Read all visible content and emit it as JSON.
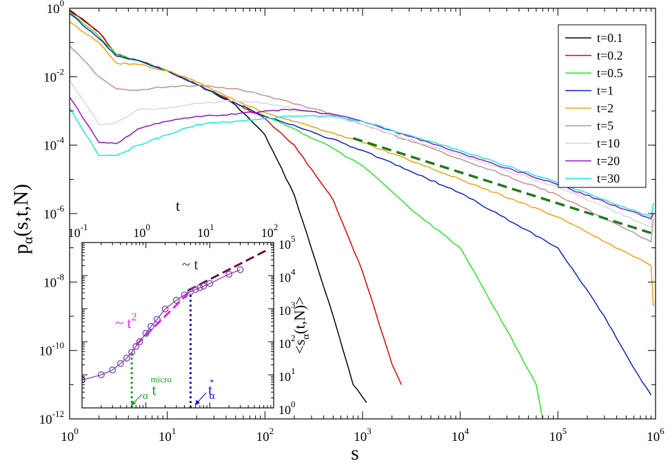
{
  "chart_data": {
    "type": "line",
    "main": {
      "xscale": "log10",
      "yscale": "log10",
      "xlim": [
        1,
        1000000
      ],
      "ylim": [
        1e-12,
        1
      ],
      "xlabel": "s",
      "ylabel_main": "p",
      "ylabel_sub": "α",
      "ylabel_args": "(s,t,N)",
      "x_tick_exponents": [
        "0",
        "1",
        "2",
        "3",
        "4",
        "5",
        "6"
      ],
      "y_tick_exponents": [
        "0",
        "-2",
        "-4",
        "-6",
        "-8",
        "-10",
        "-12"
      ],
      "tick_base": "10",
      "legend": {
        "placement": "top-right",
        "entries": [
          "t=0.1",
          "t=0.2",
          "t=0.5",
          "t=1",
          "t=2",
          "t=5",
          "t=10",
          "t=20",
          "t=30"
        ]
      },
      "series": [
        {
          "name": "t=0.1",
          "color": "#000000",
          "x": [
            1,
            2,
            3,
            5,
            10,
            20,
            50,
            100,
            200,
            500,
            800,
            1100
          ],
          "y": [
            0.9,
            0.2,
            0.045,
            0.03,
            0.015,
            0.006,
            0.0015,
            0.0002,
            3.5e-06,
            1e-09,
            1e-11,
            3e-12
          ]
        },
        {
          "name": "t=0.2",
          "color": "#e00000",
          "x": [
            1,
            2,
            3,
            5,
            10,
            20,
            50,
            100,
            200,
            500,
            1000,
            2000,
            2500
          ],
          "y": [
            0.85,
            0.2,
            0.045,
            0.03,
            0.015,
            0.006,
            0.0017,
            0.0006,
            0.0001,
            2.5e-06,
            2e-08,
            4e-11,
            1e-11
          ]
        },
        {
          "name": "t=0.5",
          "color": "#22e822",
          "x": [
            1,
            2,
            3,
            5,
            10,
            20,
            50,
            100,
            200,
            500,
            1000,
            3000,
            10000,
            30000,
            60000,
            75000
          ],
          "y": [
            0.8,
            0.15,
            0.045,
            0.03,
            0.015,
            0.006,
            0.0017,
            0.0007,
            0.0003,
            8e-05,
            2.5e-05,
            1.5e-06,
            1e-07,
            4e-10,
            1e-11,
            3e-13
          ]
        },
        {
          "name": "t=1",
          "color": "#0a1fd6",
          "x": [
            1,
            2,
            3,
            5,
            10,
            20,
            50,
            100,
            300,
            1000,
            3000,
            10000,
            100000,
            300000,
            600000,
            900000
          ],
          "y": [
            0.7,
            0.13,
            0.04,
            0.03,
            0.015,
            0.006,
            0.0017,
            0.0007,
            0.00025,
            7e-05,
            1.8e-05,
            4e-06,
            1e-07,
            1e-09,
            3e-11,
            5e-12
          ]
        },
        {
          "name": "t=2",
          "color": "#f0a010",
          "x": [
            1,
            2,
            3,
            5,
            10,
            20,
            50,
            100,
            300,
            1000,
            10000,
            100000,
            900000,
            950000
          ],
          "y": [
            0.4,
            0.1,
            0.025,
            0.023,
            0.015,
            0.007,
            0.002,
            0.0009,
            0.00035,
            0.00012,
            1e-05,
            8e-07,
            3e-08,
            2e-09
          ]
        },
        {
          "name": "t=5",
          "color": "#c09090",
          "x": [
            1,
            2,
            3,
            5,
            8,
            10,
            20,
            50,
            100,
            300,
            1000,
            10000,
            100000,
            900000,
            950000
          ],
          "y": [
            0.08,
            0.01,
            0.0045,
            0.004,
            0.005,
            0.005,
            0.0055,
            0.0045,
            0.0028,
            0.0012,
            0.0004,
            4e-05,
            3.5e-06,
            1.5e-07,
            7e-07
          ]
        },
        {
          "name": "t=10",
          "color": "#d8d8d8",
          "x": [
            1,
            2,
            3,
            5,
            10,
            20,
            50,
            100,
            300,
            1000,
            10000,
            100000,
            900000,
            950000
          ],
          "y": [
            0.008,
            0.0004,
            0.00045,
            0.0011,
            0.0012,
            0.0017,
            0.002,
            0.0017,
            0.001,
            0.0004,
            5e-05,
            6e-06,
            4e-07,
            2e-06
          ]
        },
        {
          "name": "t=20",
          "color": "#9012c8",
          "x": [
            1,
            2,
            3,
            5,
            10,
            20,
            50,
            100,
            200,
            500,
            1000,
            10000,
            100000,
            900000,
            950000
          ],
          "y": [
            0.0025,
            0.00012,
            0.00011,
            0.0003,
            0.0005,
            0.0007,
            0.0008,
            0.001,
            0.0011,
            0.0008,
            0.0005,
            6e-05,
            7e-06,
            7e-07,
            1e-06
          ]
        },
        {
          "name": "t=30",
          "color": "#18e6e6",
          "x": [
            1,
            2,
            3,
            5,
            10,
            20,
            50,
            100,
            200,
            500,
            1000,
            10000,
            100000,
            900000,
            950000
          ],
          "y": [
            0.0012,
            5e-05,
            5e-05,
            0.0001,
            0.0002,
            0.0004,
            0.0005,
            0.0006,
            0.0007,
            0.0007,
            0.0005,
            7e-05,
            8e-06,
            8e-07,
            2e-06
          ]
        }
      ],
      "guide": {
        "description": "power-law guide",
        "color": "#1f7a1f",
        "x": [
          800,
          900000
        ],
        "y": [
          0.00016,
          2.7e-07
        ]
      }
    },
    "inset": {
      "xscale": "log10",
      "yscale": "log10",
      "xlim": [
        0.1,
        100
      ],
      "ylim": [
        1,
        100000
      ],
      "xlabel": "t",
      "ylabel_main": "<s",
      "ylabel_sub": "α",
      "ylabel_args": "(t,N)>",
      "x_tick_exponents": [
        "-1",
        "0",
        "1",
        "2"
      ],
      "y_tick_exponents": [
        "0",
        "1",
        "2",
        "3",
        "4",
        "5"
      ],
      "tick_base": "10",
      "series": {
        "name": "<s_alpha(t,N)>",
        "color": "#8040b0",
        "t": [
          0.1,
          0.2,
          0.3,
          0.4,
          0.5,
          0.6,
          0.7,
          0.8,
          1.0,
          1.2,
          1.5,
          2,
          3,
          4,
          5,
          6,
          7,
          8,
          10,
          20,
          30
        ],
        "s": [
          7,
          10,
          14,
          22,
          32,
          48,
          72,
          100,
          180,
          290,
          480,
          980,
          1800,
          2600,
          3300,
          3800,
          4300,
          4800,
          5800,
          11000,
          15000
        ]
      },
      "fit_t2": {
        "label_prefix": "~ t",
        "exponent": "2",
        "color": "#ee22ee",
        "t": [
          0.7,
          4.5
        ],
        "s": [
          80,
          2800
        ]
      },
      "fit_t": {
        "label": "~ t",
        "color": "#6a1040",
        "t": [
          4.5,
          80
        ],
        "s": [
          3500,
          60000
        ]
      },
      "t_micro": {
        "value": 0.6,
        "label": "t",
        "sub": "α",
        "sup": "micro",
        "color": "#1aa01a"
      },
      "t_star": {
        "value": 5,
        "label": "t",
        "sub": "α",
        "sup": "*",
        "color": "#1010dd"
      }
    }
  }
}
